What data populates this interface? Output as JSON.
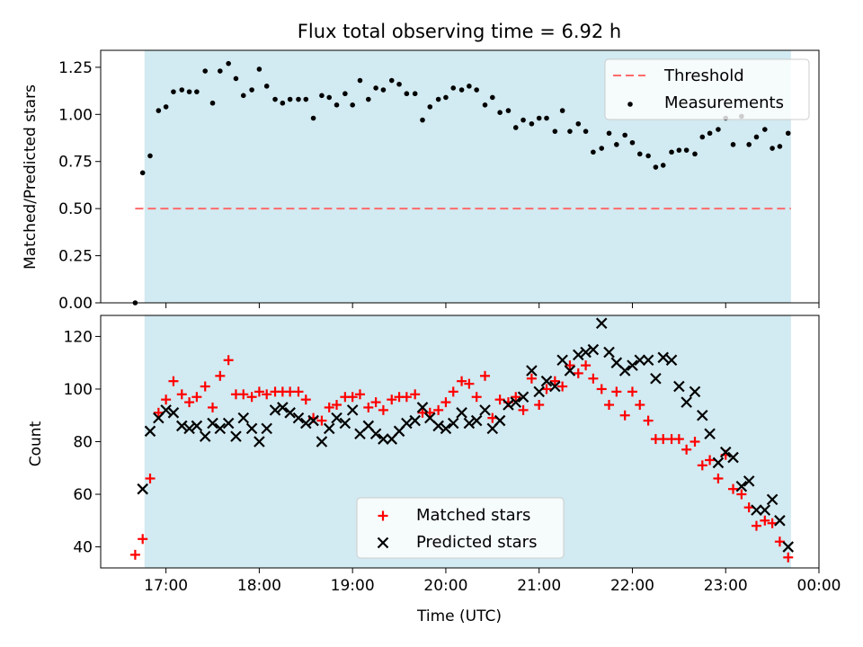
{
  "title": "Flux total observing time = 6.92 h",
  "colors": {
    "shade": "#add8e6",
    "threshold": "#ff6b6b",
    "measurement": "#000000",
    "matched": "#ff0000",
    "predicted": "#000000"
  },
  "x_ticks": [
    "17:00",
    "18:00",
    "19:00",
    "20:00",
    "21:00",
    "22:00",
    "23:00",
    "00:00"
  ],
  "chart_data": [
    {
      "type": "scatter",
      "ylabel": "Matched/Predicted stars",
      "xlabel": "",
      "xlim": [
        16.3,
        24.0
      ],
      "ylim": [
        0.0,
        1.34
      ],
      "y_ticks": [
        "0.00",
        "0.25",
        "0.50",
        "0.75",
        "1.00",
        "1.25"
      ],
      "shaded_span": [
        16.77,
        23.7
      ],
      "legend_position": "upper right",
      "threshold": {
        "name": "Threshold",
        "value": 0.5,
        "x_range": [
          16.67,
          23.7
        ],
        "style": "dashed"
      },
      "series": [
        {
          "name": "Measurements",
          "marker": "dot",
          "x": [
            16.67,
            16.75,
            16.83,
            16.92,
            17.0,
            17.08,
            17.17,
            17.25,
            17.33,
            17.42,
            17.5,
            17.58,
            17.67,
            17.75,
            17.83,
            17.92,
            18.0,
            18.08,
            18.17,
            18.25,
            18.33,
            18.42,
            18.5,
            18.58,
            18.67,
            18.75,
            18.83,
            18.92,
            19.0,
            19.08,
            19.17,
            19.25,
            19.33,
            19.42,
            19.5,
            19.58,
            19.67,
            19.75,
            19.83,
            19.92,
            20.0,
            20.08,
            20.17,
            20.25,
            20.33,
            20.42,
            20.5,
            20.58,
            20.67,
            20.75,
            20.83,
            20.92,
            21.0,
            21.08,
            21.17,
            21.25,
            21.33,
            21.42,
            21.5,
            21.58,
            21.67,
            21.75,
            21.83,
            21.92,
            22.0,
            22.08,
            22.17,
            22.25,
            22.33,
            22.42,
            22.5,
            22.58,
            22.67,
            22.75,
            22.83,
            22.92,
            23.0,
            23.08,
            23.17,
            23.25,
            23.33,
            23.42,
            23.5,
            23.58,
            23.67
          ],
          "y": [
            0.0,
            0.69,
            0.78,
            1.02,
            1.04,
            1.12,
            1.13,
            1.12,
            1.12,
            1.23,
            1.06,
            1.23,
            1.27,
            1.19,
            1.1,
            1.13,
            1.24,
            1.15,
            1.08,
            1.06,
            1.08,
            1.08,
            1.08,
            0.98,
            1.1,
            1.09,
            1.05,
            1.11,
            1.05,
            1.18,
            1.08,
            1.14,
            1.13,
            1.18,
            1.16,
            1.11,
            1.11,
            0.97,
            1.04,
            1.08,
            1.09,
            1.14,
            1.13,
            1.15,
            1.13,
            1.05,
            1.09,
            1.01,
            1.02,
            0.93,
            0.97,
            0.95,
            0.98,
            0.98,
            0.91,
            1.02,
            0.91,
            0.95,
            0.91,
            0.8,
            0.82,
            0.9,
            0.84,
            0.89,
            0.85,
            0.79,
            0.78,
            0.72,
            0.73,
            0.8,
            0.81,
            0.81,
            0.79,
            0.88,
            0.9,
            0.92,
            0.98,
            0.84,
            0.99,
            0.84,
            0.88,
            0.92,
            0.82,
            0.83,
            0.9
          ]
        }
      ]
    },
    {
      "type": "scatter",
      "ylabel": "Count",
      "xlabel": "Time (UTC)",
      "xlim": [
        16.3,
        24.0
      ],
      "ylim": [
        32,
        128
      ],
      "y_ticks": [
        "40",
        "60",
        "80",
        "100",
        "120"
      ],
      "shaded_span": [
        16.77,
        23.7
      ],
      "legend_position": "lower center",
      "series": [
        {
          "name": "Matched stars",
          "marker": "plus",
          "x": [
            16.67,
            16.75,
            16.83,
            16.92,
            17.0,
            17.08,
            17.17,
            17.25,
            17.33,
            17.42,
            17.5,
            17.58,
            17.67,
            17.75,
            17.83,
            17.92,
            18.0,
            18.08,
            18.17,
            18.25,
            18.33,
            18.42,
            18.5,
            18.58,
            18.67,
            18.75,
            18.83,
            18.92,
            19.0,
            19.08,
            19.17,
            19.25,
            19.33,
            19.42,
            19.5,
            19.58,
            19.67,
            19.75,
            19.83,
            19.92,
            20.0,
            20.08,
            20.17,
            20.25,
            20.33,
            20.42,
            20.5,
            20.58,
            20.67,
            20.75,
            20.83,
            20.92,
            21.0,
            21.08,
            21.17,
            21.25,
            21.33,
            21.42,
            21.5,
            21.58,
            21.67,
            21.75,
            21.83,
            21.92,
            22.0,
            22.08,
            22.17,
            22.25,
            22.33,
            22.42,
            22.5,
            22.58,
            22.67,
            22.75,
            22.83,
            22.92,
            23.0,
            23.08,
            23.17,
            23.25,
            23.33,
            23.42,
            23.5,
            23.58,
            23.67
          ],
          "y": [
            37,
            43,
            66,
            91,
            96,
            103,
            98,
            95,
            97,
            101,
            93,
            105,
            111,
            98,
            98,
            97,
            99,
            98,
            99,
            99,
            99,
            99,
            96,
            89,
            88,
            93,
            94,
            97,
            97,
            98,
            93,
            95,
            92,
            96,
            97,
            97,
            98,
            91,
            91,
            92,
            95,
            99,
            103,
            102,
            97,
            105,
            89,
            96,
            95,
            97,
            92,
            104,
            94,
            100,
            103,
            101,
            109,
            106,
            109,
            104,
            100,
            94,
            99,
            90,
            99,
            94,
            88,
            81,
            81,
            81,
            81,
            77,
            80,
            71,
            73,
            66,
            75,
            62,
            60,
            55,
            48,
            50,
            49,
            42,
            36
          ]
        },
        {
          "name": "Predicted stars",
          "marker": "x",
          "x": [
            16.75,
            16.83,
            16.92,
            17.0,
            17.08,
            17.17,
            17.25,
            17.33,
            17.42,
            17.5,
            17.58,
            17.67,
            17.75,
            17.83,
            17.92,
            18.0,
            18.08,
            18.17,
            18.25,
            18.33,
            18.42,
            18.5,
            18.58,
            18.67,
            18.75,
            18.83,
            18.92,
            19.0,
            19.08,
            19.17,
            19.25,
            19.33,
            19.42,
            19.5,
            19.58,
            19.67,
            19.75,
            19.83,
            19.92,
            20.0,
            20.08,
            20.17,
            20.25,
            20.33,
            20.42,
            20.5,
            20.58,
            20.67,
            20.75,
            20.83,
            20.92,
            21.0,
            21.08,
            21.17,
            21.25,
            21.33,
            21.42,
            21.5,
            21.58,
            21.67,
            21.75,
            21.83,
            21.92,
            22.0,
            22.08,
            22.17,
            22.25,
            22.33,
            22.42,
            22.5,
            22.58,
            22.67,
            22.75,
            22.83,
            22.92,
            23.0,
            23.08,
            23.17,
            23.25,
            23.33,
            23.42,
            23.5,
            23.58,
            23.67
          ],
          "y": [
            62,
            84,
            89,
            92,
            91,
            86,
            85,
            86,
            82,
            87,
            85,
            87,
            82,
            89,
            85,
            80,
            85,
            92,
            93,
            91,
            89,
            87,
            88,
            80,
            85,
            89,
            87,
            92,
            83,
            86,
            83,
            81,
            81,
            84,
            87,
            88,
            93,
            89,
            86,
            85,
            87,
            91,
            87,
            88,
            92,
            85,
            88,
            94,
            95,
            97,
            107,
            99,
            103,
            101,
            111,
            107,
            113,
            114,
            115,
            125,
            114,
            110,
            107,
            109,
            111,
            111,
            104,
            112,
            111,
            101,
            95,
            99,
            90,
            83,
            72,
            76,
            74,
            63,
            65,
            54,
            54,
            58,
            50,
            40
          ]
        }
      ]
    }
  ]
}
